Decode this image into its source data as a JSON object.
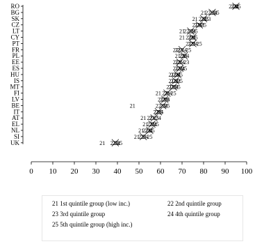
{
  "chart_data": {
    "type": "scatter",
    "title": "",
    "xlabel": "",
    "ylabel": "",
    "xlim": [
      0,
      100
    ],
    "x_ticks": [
      0,
      10,
      20,
      30,
      40,
      50,
      60,
      70,
      80,
      90,
      100
    ],
    "grid": false,
    "legend_placement": "bottom",
    "countries": [
      "RO",
      "BG",
      "SK",
      "CZ",
      "LT",
      "CY",
      "PT",
      "FR",
      "PL",
      "EE",
      "ES",
      "HU",
      "IS",
      "MT",
      "FI",
      "LV",
      "BE",
      "IT",
      "AT",
      "EL",
      "NL",
      "SI",
      "UK"
    ],
    "series": [
      {
        "name": "1st quintile group (low inc.)",
        "marker": "21",
        "values": [
          93,
          80,
          76,
          76,
          70,
          70,
          73,
          67,
          68,
          67,
          67,
          65,
          65,
          64,
          59,
          60,
          47,
          58,
          52,
          53,
          51,
          49,
          33
        ]
      },
      {
        "name": "2nd quintile group",
        "marker": "22",
        "values": [
          95,
          82,
          79,
          77,
          72,
          73,
          74,
          68,
          70,
          68,
          68,
          66,
          66,
          65,
          62,
          61,
          59,
          58,
          55,
          55,
          53,
          51,
          38
        ]
      },
      {
        "name": "3rd quintile group",
        "marker": "23",
        "values": [
          94,
          84,
          82,
          79,
          74,
          74,
          75,
          69,
          71,
          72,
          69,
          67,
          68,
          66,
          63,
          62,
          61,
          59,
          56,
          56,
          54,
          52,
          39
        ]
      },
      {
        "name": "4th quintile group",
        "marker": "24",
        "values": [
          95,
          85,
          80,
          78,
          75,
          75,
          76,
          71,
          72,
          70,
          70,
          68,
          67,
          67,
          64,
          63,
          62,
          60,
          59,
          57,
          55,
          53,
          40
        ]
      },
      {
        "name": "5th quintile group (high inc.)",
        "marker": "25",
        "values": [
          96,
          86,
          81,
          80,
          76,
          76,
          78,
          73,
          70,
          69,
          71,
          69,
          69,
          68,
          66,
          63,
          63,
          60,
          58,
          58,
          56,
          55,
          41
        ]
      }
    ],
    "means": [
      95,
      84,
      80,
      78,
      74,
      75,
      75,
      70,
      71,
      69,
      69,
      68,
      67,
      66,
      63,
      62,
      61,
      59,
      57,
      56,
      55,
      52,
      39
    ],
    "legend_labels": [
      "21 1st quintile group (low inc.)",
      "22 2nd quintile group",
      "23 3rd quintile group",
      "24 4th quintile group",
      "25 5th quintile group (high inc.)"
    ]
  }
}
